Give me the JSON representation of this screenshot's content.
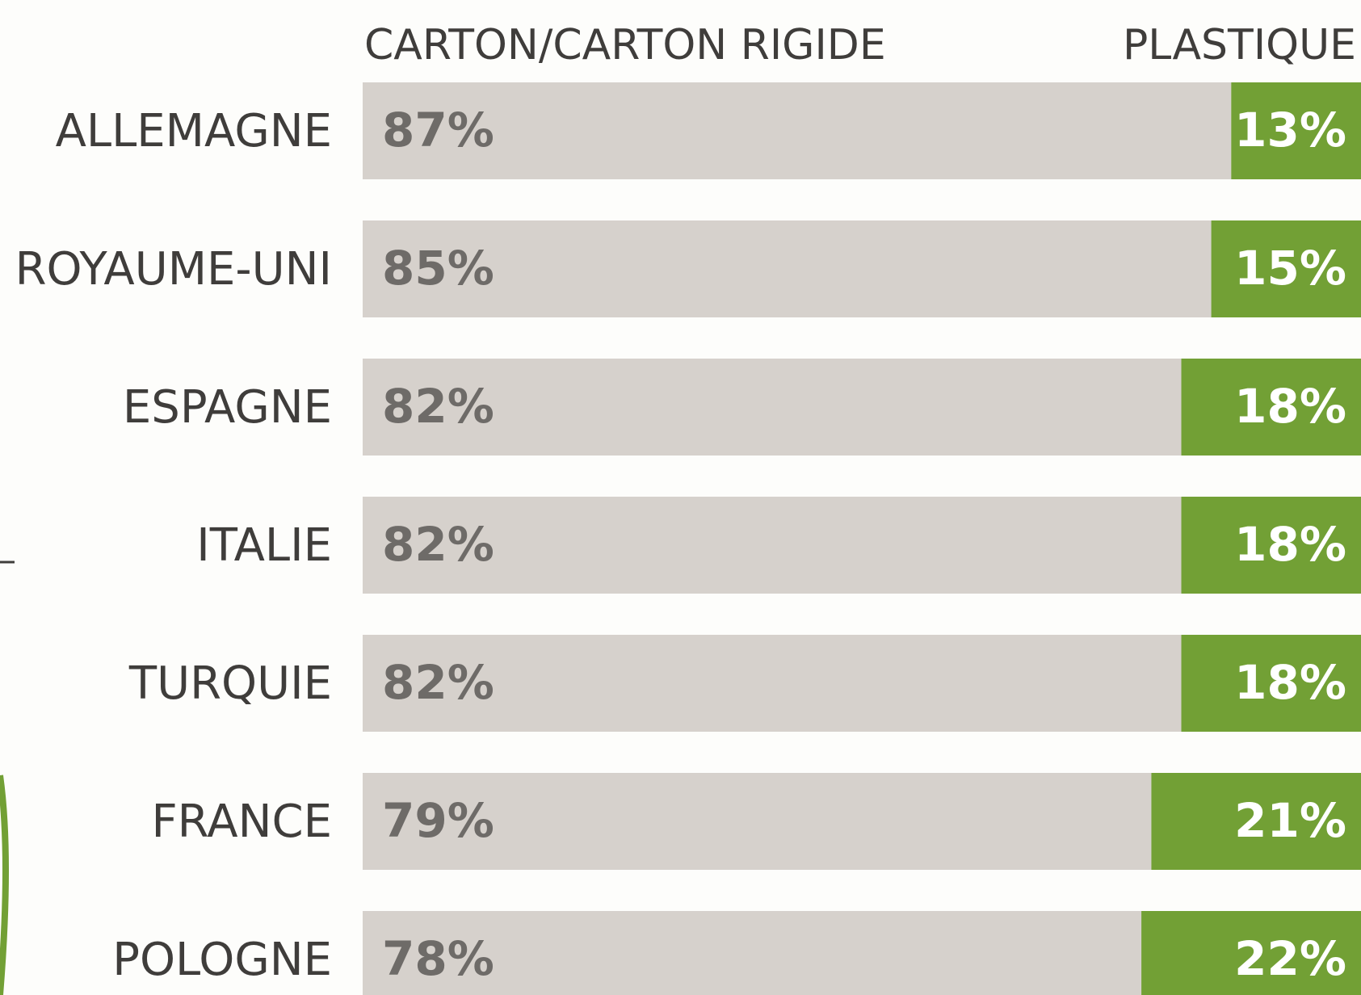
{
  "chart_data": {
    "type": "bar",
    "orientation": "horizontal",
    "stacked": true,
    "categories": [
      "ALLEMAGNE",
      "ROYAUME-UNI",
      "ESPAGNE",
      "ITALIE",
      "TURQUIE",
      "FRANCE",
      "POLOGNE"
    ],
    "series": [
      {
        "name": "CARTON/CARTON RIGIDE",
        "color": "#d6d1cc",
        "values": [
          87,
          85,
          82,
          82,
          82,
          79,
          78
        ],
        "value_labels": [
          "87%",
          "85%",
          "82%",
          "82%",
          "82%",
          "79%",
          "78%"
        ]
      },
      {
        "name": "PLASTIQUE",
        "color": "#72a035",
        "values": [
          13,
          15,
          18,
          18,
          18,
          21,
          22
        ],
        "value_labels": [
          "13%",
          "15%",
          "18%",
          "18%",
          "18%",
          "21%",
          "22%"
        ]
      }
    ],
    "xlim": [
      0,
      100
    ]
  }
}
